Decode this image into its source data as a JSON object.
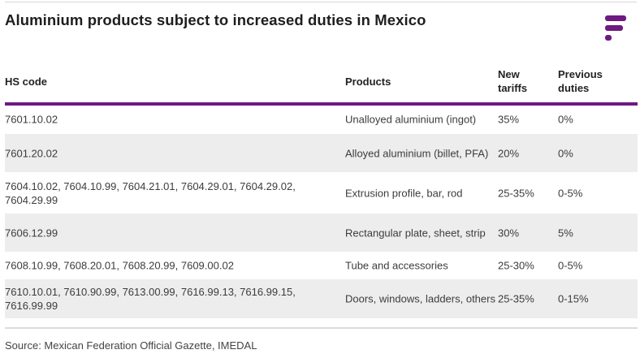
{
  "header": {
    "title": "Aluminium products subject to increased duties in Mexico",
    "logo_icon": "brand-logo-icon",
    "accent_color": "#6d1a81"
  },
  "table": {
    "columns": {
      "hs_code": "HS code",
      "products": "Products",
      "new_tariffs": "New tariffs",
      "previous_duties": "Previous duties"
    },
    "rows": [
      {
        "hs_code": "7601.10.02",
        "products": "Unalloyed aluminium (ingot)",
        "new_tariffs": "35%",
        "previous_duties": "0%"
      },
      {
        "hs_code": "7601.20.02",
        "products": "Alloyed aluminium (billet, PFA)",
        "new_tariffs": "20%",
        "previous_duties": "0%"
      },
      {
        "hs_code": "7604.10.02, 7604.10.99, 7604.21.01, 7604.29.01, 7604.29.02, 7604.29.99",
        "products": "Extrusion profile, bar, rod",
        "new_tariffs": "25-35%",
        "previous_duties": "0-5%"
      },
      {
        "hs_code": "7606.12.99",
        "products": "Rectangular plate, sheet, strip",
        "new_tariffs": "30%",
        "previous_duties": "5%"
      },
      {
        "hs_code": "7608.10.99, 7608.20.01, 7608.20.99, 7609.00.02",
        "products": "Tube and accessories",
        "new_tariffs": "25-30%",
        "previous_duties": "0-5%"
      },
      {
        "hs_code": "7610.10.01, 7610.90.99, 7613.00.99, 7616.99.13, 7616.99.15, 7616.99.99",
        "products": "Doors, windows, ladders, others",
        "new_tariffs": "25-35%",
        "previous_duties": "0-15%"
      }
    ]
  },
  "footer": {
    "source": "Source: Mexican Federation Official Gazette, IMEDAL"
  }
}
